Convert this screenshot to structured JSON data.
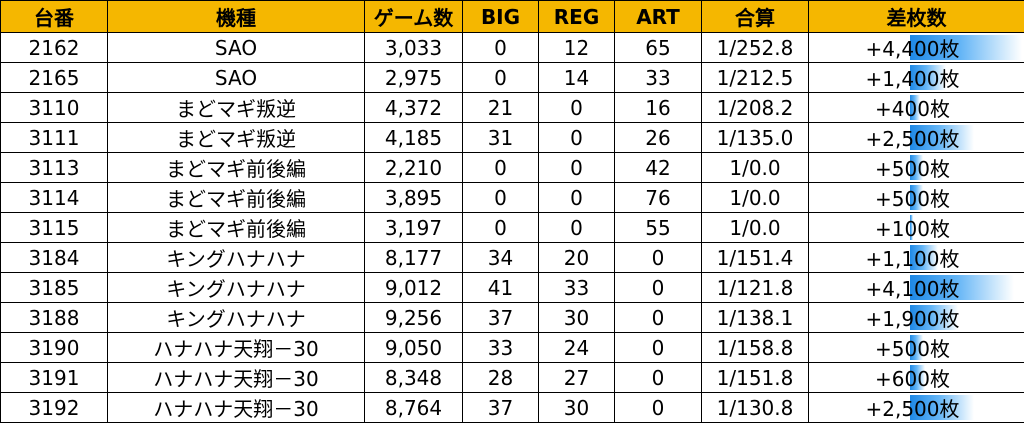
{
  "table": {
    "headers": [
      "台番",
      "機種",
      "ゲーム数",
      "BIG",
      "REG",
      "ART",
      "合算",
      "差枚数"
    ],
    "rows": [
      {
        "no": "2162",
        "model": "SAO",
        "games": "3,033",
        "big": "0",
        "reg": "12",
        "art": "65",
        "total": "1/252.8",
        "diff": "+4,400枚",
        "diff_value": 4400
      },
      {
        "no": "2165",
        "model": "SAO",
        "games": "2,975",
        "big": "0",
        "reg": "14",
        "art": "33",
        "total": "1/212.5",
        "diff": "+1,400枚",
        "diff_value": 1400
      },
      {
        "no": "3110",
        "model": "まどマギ叛逆",
        "games": "4,372",
        "big": "21",
        "reg": "0",
        "art": "16",
        "total": "1/208.2",
        "diff": "+400枚",
        "diff_value": 400
      },
      {
        "no": "3111",
        "model": "まどマギ叛逆",
        "games": "4,185",
        "big": "31",
        "reg": "0",
        "art": "26",
        "total": "1/135.0",
        "diff": "+2,500枚",
        "diff_value": 2500
      },
      {
        "no": "3113",
        "model": "まどマギ前後編",
        "games": "2,210",
        "big": "0",
        "reg": "0",
        "art": "42",
        "total": "1/0.0",
        "diff": "+500枚",
        "diff_value": 500
      },
      {
        "no": "3114",
        "model": "まどマギ前後編",
        "games": "3,895",
        "big": "0",
        "reg": "0",
        "art": "76",
        "total": "1/0.0",
        "diff": "+500枚",
        "diff_value": 500
      },
      {
        "no": "3115",
        "model": "まどマギ前後編",
        "games": "3,197",
        "big": "0",
        "reg": "0",
        "art": "55",
        "total": "1/0.0",
        "diff": "+100枚",
        "diff_value": 100
      },
      {
        "no": "3184",
        "model": "キングハナハナ",
        "games": "8,177",
        "big": "34",
        "reg": "20",
        "art": "0",
        "total": "1/151.4",
        "diff": "+1,100枚",
        "diff_value": 1100
      },
      {
        "no": "3185",
        "model": "キングハナハナ",
        "games": "9,012",
        "big": "41",
        "reg": "33",
        "art": "0",
        "total": "1/121.8",
        "diff": "+4,100枚",
        "diff_value": 4100
      },
      {
        "no": "3188",
        "model": "キングハナハナ",
        "games": "9,256",
        "big": "37",
        "reg": "30",
        "art": "0",
        "total": "1/138.1",
        "diff": "+1,900枚",
        "diff_value": 1900
      },
      {
        "no": "3190",
        "model": "ハナハナ天翔－30",
        "games": "9,050",
        "big": "33",
        "reg": "24",
        "art": "0",
        "total": "1/158.8",
        "diff": "+500枚",
        "diff_value": 500
      },
      {
        "no": "3191",
        "model": "ハナハナ天翔－30",
        "games": "8,348",
        "big": "28",
        "reg": "27",
        "art": "0",
        "total": "1/151.8",
        "diff": "+600枚",
        "diff_value": 600
      },
      {
        "no": "3192",
        "model": "ハナハナ天翔－30",
        "games": "8,764",
        "big": "37",
        "reg": "30",
        "art": "0",
        "total": "1/130.8",
        "diff": "+2,500枚",
        "diff_value": 2500
      }
    ]
  },
  "colors": {
    "header_bg": "#f5b700",
    "diff_text": "#1f2fd1",
    "diff_bar": "#1e88e5"
  }
}
